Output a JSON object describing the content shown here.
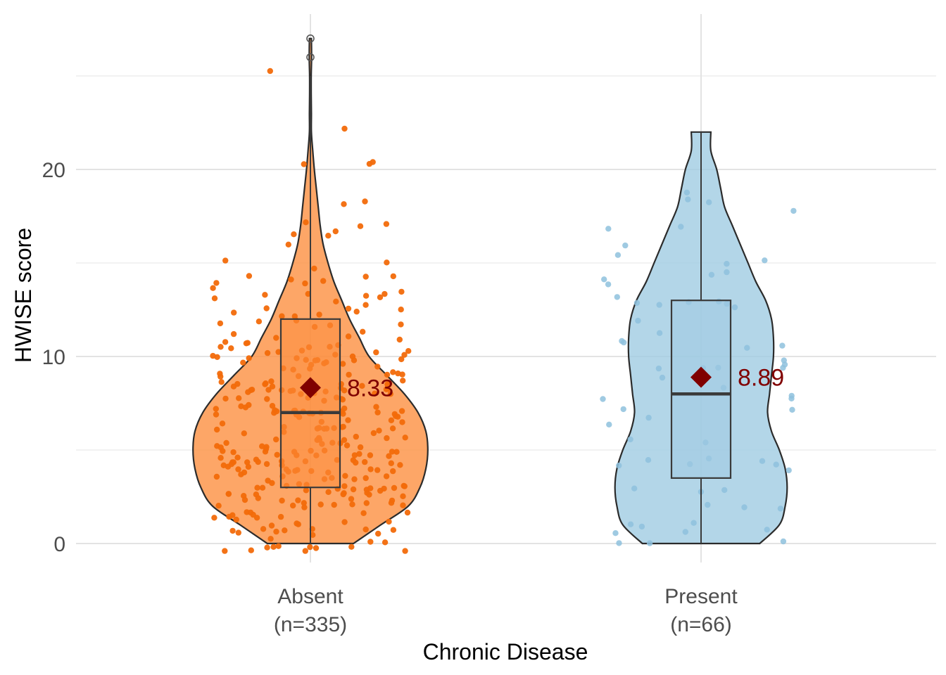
{
  "chart_data": {
    "type": "violin",
    "xlabel": "Chronic Disease",
    "ylabel": "HWISE score",
    "ylim": [
      -1.2,
      28.5
    ],
    "yticks": [
      0,
      10,
      20
    ],
    "grid": true,
    "legend": "none",
    "groups": [
      {
        "category": "Absent",
        "n_label": "(n=335)",
        "color": "#fd8d3c",
        "point_color": "#f26a0a",
        "stats": {
          "min": 0,
          "q1": 3,
          "median": 7,
          "q3": 12,
          "max": 25,
          "mean": 8.33
        },
        "mean_label": "8.33",
        "outliers": [
          26,
          27
        ],
        "density": [
          [
            0,
            0.22
          ],
          [
            1,
            0.36
          ],
          [
            2,
            0.5
          ],
          [
            3,
            0.56
          ],
          [
            4,
            0.59
          ],
          [
            5,
            0.6
          ],
          [
            6,
            0.59
          ],
          [
            7,
            0.55
          ],
          [
            8,
            0.48
          ],
          [
            9,
            0.39
          ],
          [
            10,
            0.3
          ],
          [
            11,
            0.25
          ],
          [
            12,
            0.2
          ],
          [
            13,
            0.16
          ],
          [
            14,
            0.12
          ],
          [
            15,
            0.09
          ],
          [
            16,
            0.065
          ],
          [
            17,
            0.05
          ],
          [
            18,
            0.04
          ],
          [
            19,
            0.03
          ],
          [
            20,
            0.02
          ],
          [
            21,
            0.012
          ],
          [
            22,
            0.005
          ],
          [
            23,
            0.005
          ],
          [
            24,
            0.004
          ],
          [
            25,
            0.004
          ],
          [
            26,
            0.006
          ],
          [
            27,
            0.005
          ]
        ]
      },
      {
        "category": "Present",
        "n_label": "(n=66)",
        "color": "#9ecae1",
        "point_color": "#8ec1dd",
        "stats": {
          "min": 0,
          "q1": 3.5,
          "median": 8,
          "q3": 13,
          "max": 22,
          "mean": 8.89
        },
        "mean_label": "8.89",
        "outliers": [],
        "density": [
          [
            0,
            0.3
          ],
          [
            1,
            0.4
          ],
          [
            2,
            0.43
          ],
          [
            3,
            0.44
          ],
          [
            4,
            0.43
          ],
          [
            5,
            0.4
          ],
          [
            6,
            0.36
          ],
          [
            7,
            0.34
          ],
          [
            8,
            0.35
          ],
          [
            9,
            0.36
          ],
          [
            10,
            0.37
          ],
          [
            11,
            0.37
          ],
          [
            12,
            0.36
          ],
          [
            13,
            0.33
          ],
          [
            14,
            0.28
          ],
          [
            15,
            0.24
          ],
          [
            16,
            0.2
          ],
          [
            17,
            0.16
          ],
          [
            18,
            0.12
          ],
          [
            19,
            0.1
          ],
          [
            20,
            0.08
          ],
          [
            21,
            0.05
          ],
          [
            22,
            0.05
          ]
        ]
      }
    ],
    "mean_marker_color": "#800000"
  }
}
